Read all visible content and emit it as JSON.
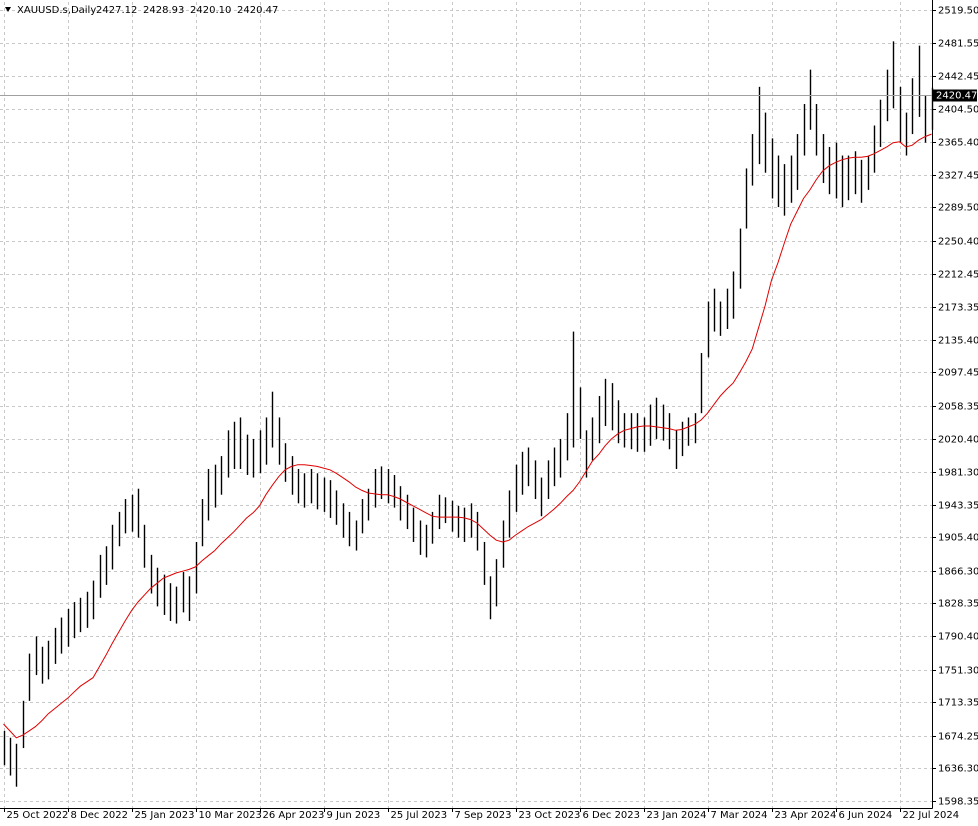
{
  "chart_data": {
    "type": "hilo",
    "symbol": "XAUUSD.s,Daily",
    "header_values": [
      2427.12,
      2428.93,
      {
        "value": 2420.1,
        "label": "2420.10"
      },
      2420.47
    ],
    "last_price": 2420.47,
    "color": "#000000",
    "grid": true,
    "ylim": [
      1590.2,
      2528.8
    ],
    "yticks": [
      {
        "value": 2519.5,
        "label": "2519.50"
      },
      2481.55,
      2442.45,
      {
        "value": 2404.5,
        "label": "2404.50"
      },
      {
        "value": 2365.4,
        "label": "2365.40"
      },
      2327.45,
      {
        "value": 2289.5,
        "label": "2289.50"
      },
      {
        "value": 2250.4,
        "label": "2250.40"
      },
      2212.45,
      2173.35,
      {
        "value": 2135.4,
        "label": "2135.40"
      },
      2097.45,
      2058.35,
      {
        "value": 2020.4,
        "label": "2020.40"
      },
      {
        "value": 1981.3,
        "label": "1981.30"
      },
      1943.35,
      {
        "value": 1905.4,
        "label": "1905.40"
      },
      {
        "value": 1866.3,
        "label": "1866.30"
      },
      1828.35,
      {
        "value": 1790.4,
        "label": "1790.40"
      },
      {
        "value": 1751.3,
        "label": "1751.30"
      },
      1713.35,
      1674.25,
      {
        "value": 1636.3,
        "label": "1636.30"
      },
      1598.35
    ],
    "xtick_labels": [
      "25 Oct 2022",
      "8 Dec 2022",
      "25 Jan 2023",
      "10 Mar 2023",
      "26 Apr 2023",
      "9 Jun 2023",
      "25 Jul 2023",
      "7 Sep 2023",
      "23 Oct 2023",
      "6 Dec 2023",
      "23 Jan 2024",
      "7 Mar 2024",
      "23 Apr 2024",
      "6 Jun 2024",
      "22 Jul 2024"
    ],
    "high": [
      1680,
      1672,
      1665,
      1715,
      1770,
      1790,
      1778,
      1785,
      1800,
      1812,
      1822,
      1830,
      1835,
      1842,
      1855,
      1885,
      1895,
      1920,
      1935,
      1950,
      1955,
      1962,
      1920,
      1885,
      1870,
      1862,
      1852,
      1848,
      1865,
      1860,
      1900,
      1950,
      1985,
      1990,
      2000,
      2030,
      2040,
      2045,
      2025,
      2020,
      2030,
      2045,
      2075,
      2045,
      2015,
      2000,
      1985,
      1980,
      1985,
      1980,
      1975,
      1972,
      1960,
      1945,
      1935,
      1925,
      1950,
      1962,
      1985,
      1988,
      1985,
      1978,
      1965,
      1955,
      1940,
      1925,
      1920,
      1935,
      1955,
      1952,
      1948,
      1942,
      1940,
      1945,
      1935,
      1900,
      1860,
      1880,
      1925,
      1960,
      1990,
      2005,
      2010,
      1995,
      1975,
      1995,
      2010,
      2020,
      2050,
      2145,
      2080,
      2030,
      2045,
      2070,
      2090,
      2085,
      2065,
      2050,
      2050,
      2050,
      2045,
      2060,
      2068,
      2060,
      2050,
      2030,
      2040,
      2045,
      2050,
      2120,
      2180,
      2195,
      2180,
      2195,
      2215,
      2265,
      2335,
      2375,
      2430,
      2400,
      2370,
      2350,
      2340,
      2350,
      2375,
      2410,
      2450,
      2410,
      2375,
      2360,
      2365,
      2350,
      2350,
      2355,
      2345,
      2350,
      2385,
      2415,
      2450,
      2483,
      2430,
      2400,
      2440,
      2478,
      2420,
      2429
    ],
    "low": [
      1640,
      1628,
      1615,
      1660,
      1715,
      1745,
      1735,
      1740,
      1758,
      1770,
      1778,
      1788,
      1795,
      1800,
      1810,
      1835,
      1850,
      1868,
      1895,
      1910,
      1912,
      1905,
      1870,
      1840,
      1825,
      1815,
      1808,
      1805,
      1818,
      1808,
      1840,
      1895,
      1925,
      1940,
      1955,
      1975,
      1985,
      1985,
      1978,
      1975,
      1980,
      1990,
      2010,
      1990,
      1970,
      1955,
      1945,
      1940,
      1945,
      1938,
      1935,
      1928,
      1920,
      1905,
      1895,
      1890,
      1910,
      1925,
      1940,
      1950,
      1945,
      1940,
      1925,
      1915,
      1900,
      1885,
      1882,
      1898,
      1915,
      1922,
      1912,
      1905,
      1900,
      1905,
      1890,
      1850,
      1810,
      1825,
      1870,
      1905,
      1935,
      1955,
      1965,
      1950,
      1930,
      1950,
      1965,
      1975,
      1995,
      2010,
      2020,
      1975,
      1995,
      2015,
      2035,
      2030,
      2015,
      2010,
      2008,
      2005,
      2005,
      2012,
      2020,
      2018,
      2008,
      1985,
      2000,
      2012,
      2015,
      2050,
      2115,
      2145,
      2140,
      2148,
      2160,
      2195,
      2265,
      2315,
      2340,
      2330,
      2300,
      2290,
      2280,
      2295,
      2310,
      2350,
      2380,
      2350,
      2318,
      2305,
      2300,
      2290,
      2298,
      2305,
      2295,
      2310,
      2330,
      2360,
      2390,
      2405,
      2365,
      2350,
      2375,
      2395,
      2365,
      2380
    ],
    "ma": {
      "color": "#e00000",
      "values": [
        1688,
        1680,
        1672,
        1675,
        1680,
        1685,
        1692,
        1700,
        1706,
        1712,
        1718,
        1725,
        1732,
        1737,
        1742,
        1755,
        1768,
        1782,
        1795,
        1808,
        1820,
        1830,
        1838,
        1846,
        1852,
        1858,
        1861,
        1864,
        1866,
        1868,
        1871,
        1878,
        1884,
        1890,
        1898,
        1905,
        1912,
        1920,
        1928,
        1934,
        1942,
        1955,
        1966,
        1976,
        1984,
        1988,
        1990,
        1990,
        1989,
        1988,
        1986,
        1984,
        1980,
        1975,
        1970,
        1964,
        1960,
        1957,
        1956,
        1955,
        1955,
        1953,
        1950,
        1946,
        1942,
        1938,
        1934,
        1930,
        1929,
        1929,
        1929,
        1929,
        1928,
        1926,
        1922,
        1915,
        1908,
        1902,
        1900,
        1902,
        1908,
        1913,
        1918,
        1922,
        1926,
        1932,
        1938,
        1945,
        1953,
        1960,
        1970,
        1982,
        1994,
        2002,
        2012,
        2020,
        2026,
        2030,
        2032,
        2034,
        2035,
        2035,
        2034,
        2033,
        2032,
        2030,
        2031,
        2034,
        2037,
        2042,
        2050,
        2060,
        2070,
        2078,
        2085,
        2097,
        2110,
        2125,
        2150,
        2175,
        2205,
        2225,
        2248,
        2270,
        2285,
        2300,
        2310,
        2322,
        2332,
        2338,
        2342,
        2345,
        2347,
        2348,
        2348,
        2349,
        2352,
        2356,
        2360,
        2365,
        2366,
        2360,
        2362,
        2368,
        2372,
        2375
      ]
    }
  }
}
